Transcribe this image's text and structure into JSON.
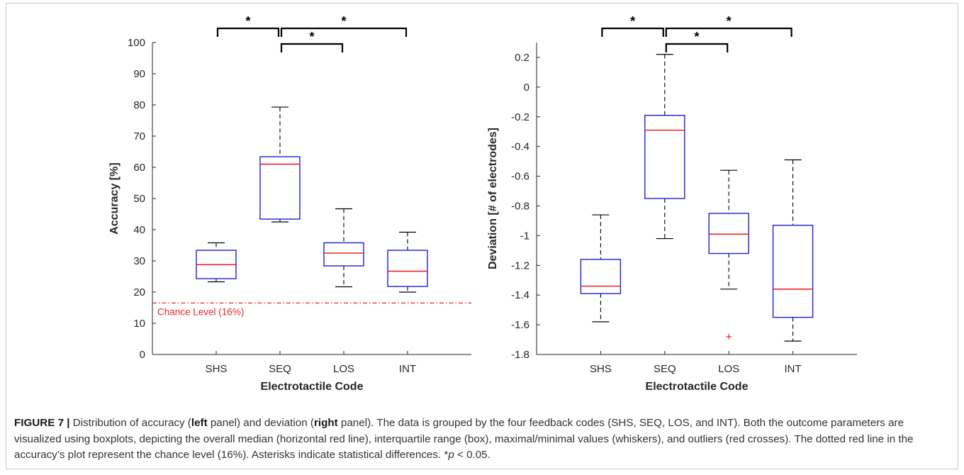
{
  "chart_data": [
    {
      "type": "box",
      "xlabel": "Electrotactile Code",
      "ylabel": "Accuracy [%]",
      "ylim": [
        0,
        100
      ],
      "yticks": [
        0,
        10,
        20,
        30,
        40,
        50,
        60,
        70,
        80,
        90,
        100
      ],
      "categories": [
        "SHS",
        "SEQ",
        "LOS",
        "INT"
      ],
      "boxes": [
        {
          "category": "SHS",
          "min": 23.3,
          "q1": 24.3,
          "median": 28.8,
          "q3": 33.4,
          "max": 35.8,
          "outliers": []
        },
        {
          "category": "SEQ",
          "min": 42.5,
          "q1": 43.4,
          "median": 61.0,
          "q3": 63.4,
          "max": 79.3,
          "outliers": []
        },
        {
          "category": "LOS",
          "min": 21.7,
          "q1": 28.4,
          "median": 32.5,
          "q3": 35.8,
          "max": 46.7,
          "outliers": []
        },
        {
          "category": "INT",
          "min": 20.0,
          "q1": 21.8,
          "median": 26.7,
          "q3": 33.4,
          "max": 39.2,
          "outliers": []
        }
      ],
      "reference_line": {
        "value": 16.5,
        "label": "Chance Level (16%)",
        "style": "dash-dot",
        "color": "#e8262a"
      },
      "significance": [
        {
          "from": "SHS",
          "to": "SEQ",
          "label": "*"
        },
        {
          "from": "SEQ",
          "to": "INT",
          "label": "*"
        },
        {
          "from": "SEQ",
          "to": "LOS",
          "label": "*"
        }
      ],
      "box_color": "#1f1fd6",
      "median_color": "#e8262a"
    },
    {
      "type": "box",
      "xlabel": "Electrotactile Code",
      "ylabel": "Deviation [# of electrodes]",
      "ylim": [
        -1.8,
        0.3
      ],
      "yticks": [
        -1.8,
        -1.6,
        -1.4,
        -1.2,
        -1,
        -0.8,
        -0.6,
        -0.4,
        -0.2,
        0,
        0.2
      ],
      "ytick_labels": [
        "-1.8",
        "-1.6",
        "-1.4",
        "-1.2",
        "-1",
        "-0.8",
        "-0.6",
        "-0.4",
        "-0.2",
        "0",
        "0.2"
      ],
      "categories": [
        "SHS",
        "SEQ",
        "LOS",
        "INT"
      ],
      "boxes": [
        {
          "category": "SHS",
          "min": -1.58,
          "q1": -1.39,
          "median": -1.34,
          "q3": -1.16,
          "max": -0.86,
          "outliers": []
        },
        {
          "category": "SEQ",
          "min": -1.02,
          "q1": -0.75,
          "median": -0.29,
          "q3": -0.19,
          "max": 0.22,
          "outliers": []
        },
        {
          "category": "LOS",
          "min": -1.36,
          "q1": -1.12,
          "median": -0.99,
          "q3": -0.85,
          "max": -0.56,
          "outliers": [
            -1.68
          ]
        },
        {
          "category": "INT",
          "min": -1.71,
          "q1": -1.55,
          "median": -1.36,
          "q3": -0.93,
          "max": -0.49,
          "outliers": []
        }
      ],
      "significance": [
        {
          "from": "SHS",
          "to": "SEQ",
          "label": "*"
        },
        {
          "from": "SEQ",
          "to": "INT",
          "label": "*"
        },
        {
          "from": "SEQ",
          "to": "LOS",
          "label": "*"
        }
      ],
      "box_color": "#1f1fd6",
      "median_color": "#e8262a"
    }
  ],
  "caption": {
    "figure_label": "FIGURE 7 |",
    "text_1": " Distribution of accuracy (",
    "bold_left": "left",
    "text_2": " panel) and deviation (",
    "bold_right": "right",
    "text_3": " panel). The data is grouped by the four feedback codes (SHS, SEQ, LOS, and INT). Both the outcome parameters are visualized using boxplots, depicting the overall median (horizontal red line), interquartile range (box), maximal/minimal values (whiskers), and outliers (red crosses). The dotted red line in the accuracy’s plot represent the chance level (16%). Asterisks indicate statistical differences. ",
    "p_star": "*",
    "p_var": "p",
    "p_rest": " < 0.05."
  }
}
